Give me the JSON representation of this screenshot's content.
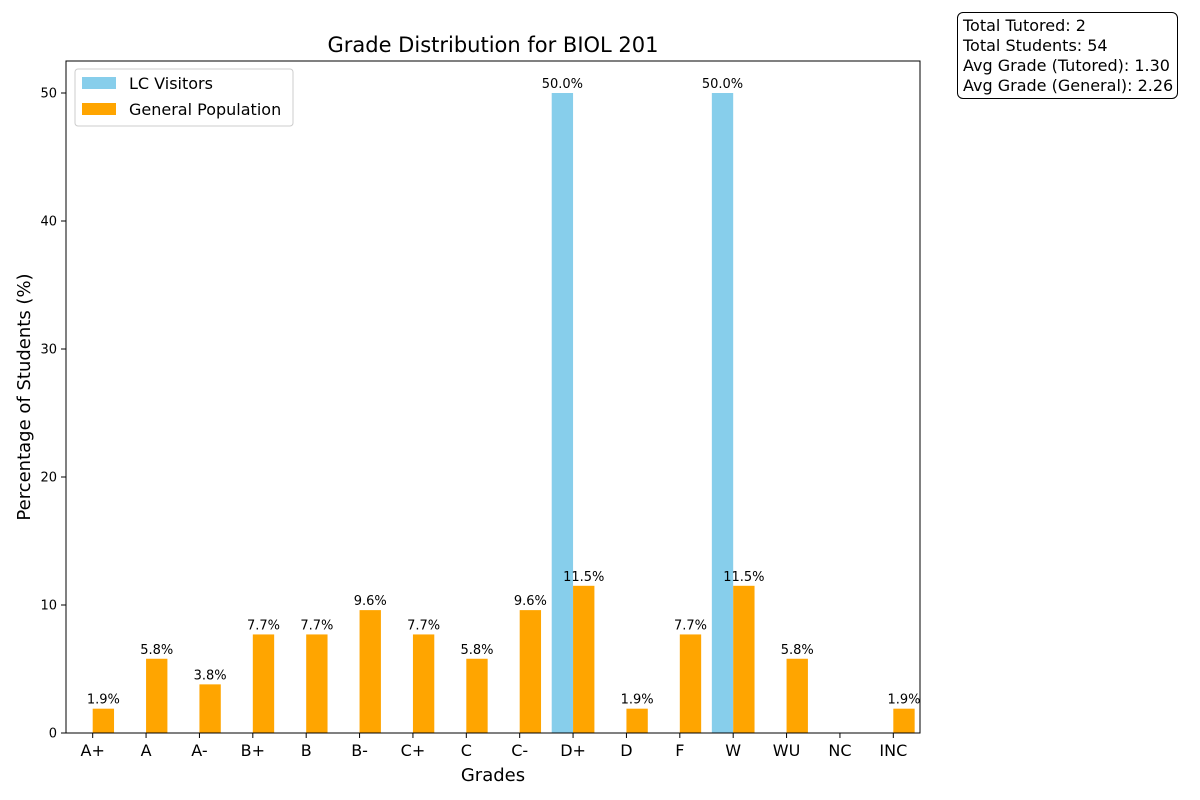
{
  "chart_data": {
    "type": "bar",
    "title": "Grade Distribution for BIOL  201",
    "xlabel": "Grades",
    "ylabel": "Percentage of Students (%)",
    "categories": [
      "A+",
      "A",
      "A-",
      "B+",
      "B",
      "B-",
      "C+",
      "C",
      "C-",
      "D+",
      "D",
      "F",
      "W",
      "WU",
      "NC",
      "INC"
    ],
    "series": [
      {
        "name": "LC Visitors",
        "color": "#87CEEB",
        "values": [
          0,
          0,
          0,
          0,
          0,
          0,
          0,
          0,
          0,
          50.0,
          0,
          0,
          50.0,
          0,
          0,
          0
        ],
        "labels": [
          "",
          "",
          "",
          "",
          "",
          "",
          "",
          "",
          "",
          "50.0%",
          "",
          "",
          "50.0%",
          "",
          "",
          ""
        ]
      },
      {
        "name": "General Population",
        "color": "#FFA500",
        "values": [
          1.9,
          5.8,
          3.8,
          7.7,
          7.7,
          9.6,
          7.7,
          5.8,
          9.6,
          11.5,
          1.9,
          7.7,
          11.5,
          5.8,
          0,
          1.9
        ],
        "labels": [
          "1.9%",
          "5.8%",
          "3.8%",
          "7.7%",
          "7.7%",
          "9.6%",
          "7.7%",
          "5.8%",
          "9.6%",
          "11.5%",
          "1.9%",
          "7.7%",
          "11.5%",
          "5.8%",
          "",
          "1.9%"
        ]
      }
    ],
    "ylim": [
      0,
      52.5
    ],
    "yticks": [
      0,
      10,
      20,
      30,
      40,
      50
    ],
    "grid": false,
    "legend_position": "top-left"
  },
  "stats": {
    "total_tutored": "Total Tutored: 2",
    "total_students": "Total Students: 54",
    "avg_tutored": "Avg Grade (Tutored): 1.30",
    "avg_general": "Avg Grade (General): 2.26"
  }
}
